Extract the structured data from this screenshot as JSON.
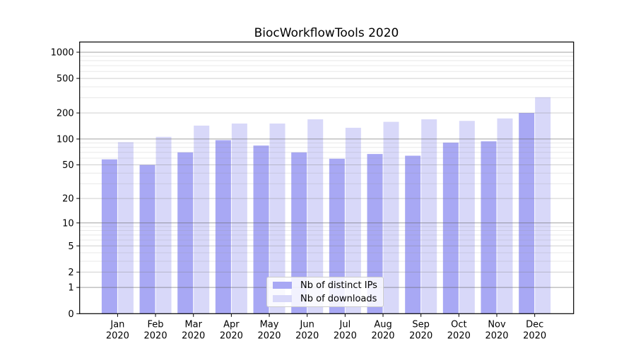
{
  "figure": {
    "background": "#ffffff",
    "frame_color": "#000000",
    "text_color": "#000000"
  },
  "chart_data": {
    "type": "bar",
    "title": "BiocWorkflowTools 2020",
    "categories": [
      "Jan",
      "Feb",
      "Mar",
      "Apr",
      "May",
      "Jun",
      "Jul",
      "Aug",
      "Sep",
      "Oct",
      "Nov",
      "Dec"
    ],
    "category_sub_label": "2020",
    "series": [
      {
        "name": "Nb of distinct IPs",
        "color": "#a8a8f4",
        "values": [
          58,
          50,
          70,
          97,
          84,
          70,
          59,
          67,
          64,
          91,
          94,
          200
        ]
      },
      {
        "name": "Nb of downloads",
        "color": "#d8d8f9",
        "values": [
          92,
          106,
          143,
          151,
          151,
          169,
          135,
          158,
          169,
          162,
          173,
          304
        ]
      }
    ],
    "xlabel": "",
    "ylabel": "",
    "y_axis": {
      "scale": "log1p",
      "ticks": [
        0,
        1,
        2,
        5,
        10,
        20,
        50,
        100,
        200,
        500,
        1000
      ],
      "min": 0,
      "max": 1310
    },
    "grid": {
      "on": true,
      "major_lines": [
        1,
        10,
        100,
        1000
      ],
      "medium_lines": [
        2,
        5,
        20,
        50,
        200,
        500
      ],
      "minor_lines": [
        3,
        4,
        6,
        7,
        8,
        9,
        30,
        40,
        60,
        70,
        80,
        90,
        300,
        400,
        600,
        700,
        800,
        900
      ],
      "major_color": "rgba(100,100,100,0.60)",
      "medium_color": "rgba(130,130,130,0.38)",
      "minor_color": "rgba(150,150,150,0.22)"
    },
    "legend": {
      "position": "inside-bottom-center",
      "entries": [
        {
          "label": "Nb of distinct IPs",
          "color": "#a8a8f4"
        },
        {
          "label": "Nb of downloads",
          "color": "#d8d8f9"
        }
      ]
    }
  }
}
